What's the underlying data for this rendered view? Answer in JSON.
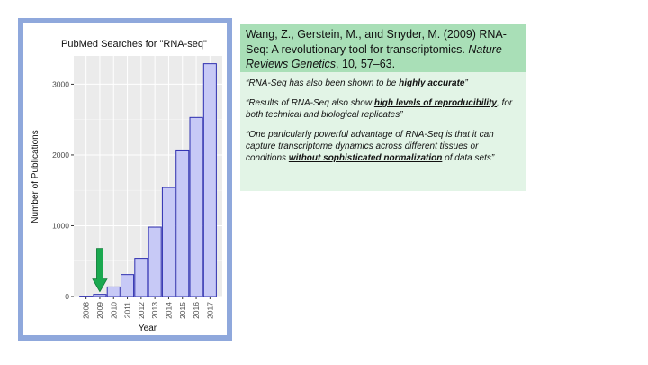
{
  "citation": {
    "authors_year_title": "Wang, Z., Gerstein, M., and Snyder, M. (2009) RNA-Seq: A revolutionary tool for transcriptomics.",
    "journal": "Nature Reviews Genetics",
    "volume_pages": ", 10, 57–63."
  },
  "quotes": [
    {
      "pre": "“RNA-Seq has also been shown to be ",
      "emph": "highly accurate",
      "post": "”"
    },
    {
      "pre": "“Results of RNA-Seq also show ",
      "emph": "high levels of reproducibility",
      "post": ", for both technical and biological replicates”"
    },
    {
      "pre": "“One particularly powerful advantage of RNA-Seq is that it can capture transcriptome dynamics across different tissues or conditions ",
      "emph": "without sophisticated normalization",
      "post": " of data sets”"
    }
  ],
  "colors": {
    "bar_fill": "#c7c9f6",
    "bar_stroke": "#2e2fb0",
    "panel_bg": "#ebebeb",
    "grid_major": "#ffffff",
    "arrow": "#1aa84f",
    "frame": "#8fa8dc"
  },
  "chart_data": {
    "type": "bar",
    "title": "PubMed Searches for \"RNA-seq\"",
    "xlabel": "Year",
    "ylabel": "Number of Publications",
    "categories": [
      "2008",
      "2009",
      "2010",
      "2011",
      "2012",
      "2013",
      "2014",
      "2015",
      "2016",
      "2017"
    ],
    "values": [
      5,
      30,
      135,
      310,
      540,
      980,
      1540,
      2070,
      2530,
      3290
    ],
    "ylim": [
      0,
      3400
    ],
    "yticks": [
      0,
      1000,
      2000,
      3000
    ],
    "grid": true,
    "annotation": {
      "type": "arrow",
      "category": "2009",
      "direction": "down"
    }
  }
}
